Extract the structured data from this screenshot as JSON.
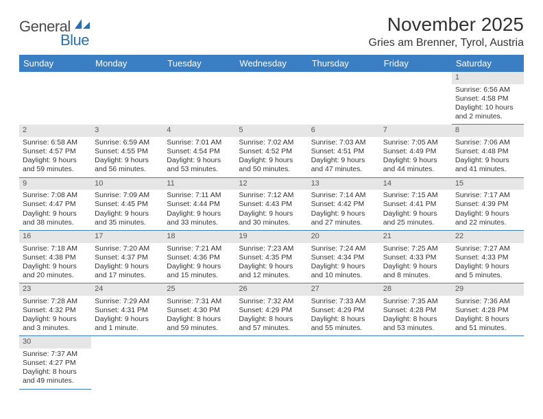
{
  "brand": {
    "part1": "General",
    "part2": "Blue"
  },
  "title": "November 2025",
  "location": "Gries am Brenner, Tyrol, Austria",
  "colors": {
    "header_bg": "#3a7fc4",
    "header_text": "#ffffff",
    "daynum_bg": "#e6e6e6",
    "rule": "#3a7fc4",
    "logo_gray": "#4a4a4a",
    "logo_blue": "#2a6fb5",
    "text": "#333333"
  },
  "weekdays": [
    "Sunday",
    "Monday",
    "Tuesday",
    "Wednesday",
    "Thursday",
    "Friday",
    "Saturday"
  ],
  "weeks": [
    [
      null,
      null,
      null,
      null,
      null,
      null,
      {
        "n": "1",
        "sr": "Sunrise: 6:56 AM",
        "ss": "Sunset: 4:58 PM",
        "d1": "Daylight: 10 hours",
        "d2": "and 2 minutes."
      }
    ],
    [
      {
        "n": "2",
        "sr": "Sunrise: 6:58 AM",
        "ss": "Sunset: 4:57 PM",
        "d1": "Daylight: 9 hours",
        "d2": "and 59 minutes."
      },
      {
        "n": "3",
        "sr": "Sunrise: 6:59 AM",
        "ss": "Sunset: 4:55 PM",
        "d1": "Daylight: 9 hours",
        "d2": "and 56 minutes."
      },
      {
        "n": "4",
        "sr": "Sunrise: 7:01 AM",
        "ss": "Sunset: 4:54 PM",
        "d1": "Daylight: 9 hours",
        "d2": "and 53 minutes."
      },
      {
        "n": "5",
        "sr": "Sunrise: 7:02 AM",
        "ss": "Sunset: 4:52 PM",
        "d1": "Daylight: 9 hours",
        "d2": "and 50 minutes."
      },
      {
        "n": "6",
        "sr": "Sunrise: 7:03 AM",
        "ss": "Sunset: 4:51 PM",
        "d1": "Daylight: 9 hours",
        "d2": "and 47 minutes."
      },
      {
        "n": "7",
        "sr": "Sunrise: 7:05 AM",
        "ss": "Sunset: 4:49 PM",
        "d1": "Daylight: 9 hours",
        "d2": "and 44 minutes."
      },
      {
        "n": "8",
        "sr": "Sunrise: 7:06 AM",
        "ss": "Sunset: 4:48 PM",
        "d1": "Daylight: 9 hours",
        "d2": "and 41 minutes."
      }
    ],
    [
      {
        "n": "9",
        "sr": "Sunrise: 7:08 AM",
        "ss": "Sunset: 4:47 PM",
        "d1": "Daylight: 9 hours",
        "d2": "and 38 minutes."
      },
      {
        "n": "10",
        "sr": "Sunrise: 7:09 AM",
        "ss": "Sunset: 4:45 PM",
        "d1": "Daylight: 9 hours",
        "d2": "and 35 minutes."
      },
      {
        "n": "11",
        "sr": "Sunrise: 7:11 AM",
        "ss": "Sunset: 4:44 PM",
        "d1": "Daylight: 9 hours",
        "d2": "and 33 minutes."
      },
      {
        "n": "12",
        "sr": "Sunrise: 7:12 AM",
        "ss": "Sunset: 4:43 PM",
        "d1": "Daylight: 9 hours",
        "d2": "and 30 minutes."
      },
      {
        "n": "13",
        "sr": "Sunrise: 7:14 AM",
        "ss": "Sunset: 4:42 PM",
        "d1": "Daylight: 9 hours",
        "d2": "and 27 minutes."
      },
      {
        "n": "14",
        "sr": "Sunrise: 7:15 AM",
        "ss": "Sunset: 4:41 PM",
        "d1": "Daylight: 9 hours",
        "d2": "and 25 minutes."
      },
      {
        "n": "15",
        "sr": "Sunrise: 7:17 AM",
        "ss": "Sunset: 4:39 PM",
        "d1": "Daylight: 9 hours",
        "d2": "and 22 minutes."
      }
    ],
    [
      {
        "n": "16",
        "sr": "Sunrise: 7:18 AM",
        "ss": "Sunset: 4:38 PM",
        "d1": "Daylight: 9 hours",
        "d2": "and 20 minutes."
      },
      {
        "n": "17",
        "sr": "Sunrise: 7:20 AM",
        "ss": "Sunset: 4:37 PM",
        "d1": "Daylight: 9 hours",
        "d2": "and 17 minutes."
      },
      {
        "n": "18",
        "sr": "Sunrise: 7:21 AM",
        "ss": "Sunset: 4:36 PM",
        "d1": "Daylight: 9 hours",
        "d2": "and 15 minutes."
      },
      {
        "n": "19",
        "sr": "Sunrise: 7:23 AM",
        "ss": "Sunset: 4:35 PM",
        "d1": "Daylight: 9 hours",
        "d2": "and 12 minutes."
      },
      {
        "n": "20",
        "sr": "Sunrise: 7:24 AM",
        "ss": "Sunset: 4:34 PM",
        "d1": "Daylight: 9 hours",
        "d2": "and 10 minutes."
      },
      {
        "n": "21",
        "sr": "Sunrise: 7:25 AM",
        "ss": "Sunset: 4:33 PM",
        "d1": "Daylight: 9 hours",
        "d2": "and 8 minutes."
      },
      {
        "n": "22",
        "sr": "Sunrise: 7:27 AM",
        "ss": "Sunset: 4:33 PM",
        "d1": "Daylight: 9 hours",
        "d2": "and 5 minutes."
      }
    ],
    [
      {
        "n": "23",
        "sr": "Sunrise: 7:28 AM",
        "ss": "Sunset: 4:32 PM",
        "d1": "Daylight: 9 hours",
        "d2": "and 3 minutes."
      },
      {
        "n": "24",
        "sr": "Sunrise: 7:29 AM",
        "ss": "Sunset: 4:31 PM",
        "d1": "Daylight: 9 hours",
        "d2": "and 1 minute."
      },
      {
        "n": "25",
        "sr": "Sunrise: 7:31 AM",
        "ss": "Sunset: 4:30 PM",
        "d1": "Daylight: 8 hours",
        "d2": "and 59 minutes."
      },
      {
        "n": "26",
        "sr": "Sunrise: 7:32 AM",
        "ss": "Sunset: 4:29 PM",
        "d1": "Daylight: 8 hours",
        "d2": "and 57 minutes."
      },
      {
        "n": "27",
        "sr": "Sunrise: 7:33 AM",
        "ss": "Sunset: 4:29 PM",
        "d1": "Daylight: 8 hours",
        "d2": "and 55 minutes."
      },
      {
        "n": "28",
        "sr": "Sunrise: 7:35 AM",
        "ss": "Sunset: 4:28 PM",
        "d1": "Daylight: 8 hours",
        "d2": "and 53 minutes."
      },
      {
        "n": "29",
        "sr": "Sunrise: 7:36 AM",
        "ss": "Sunset: 4:28 PM",
        "d1": "Daylight: 8 hours",
        "d2": "and 51 minutes."
      }
    ],
    [
      {
        "n": "30",
        "sr": "Sunrise: 7:37 AM",
        "ss": "Sunset: 4:27 PM",
        "d1": "Daylight: 8 hours",
        "d2": "and 49 minutes."
      },
      null,
      null,
      null,
      null,
      null,
      null
    ]
  ]
}
